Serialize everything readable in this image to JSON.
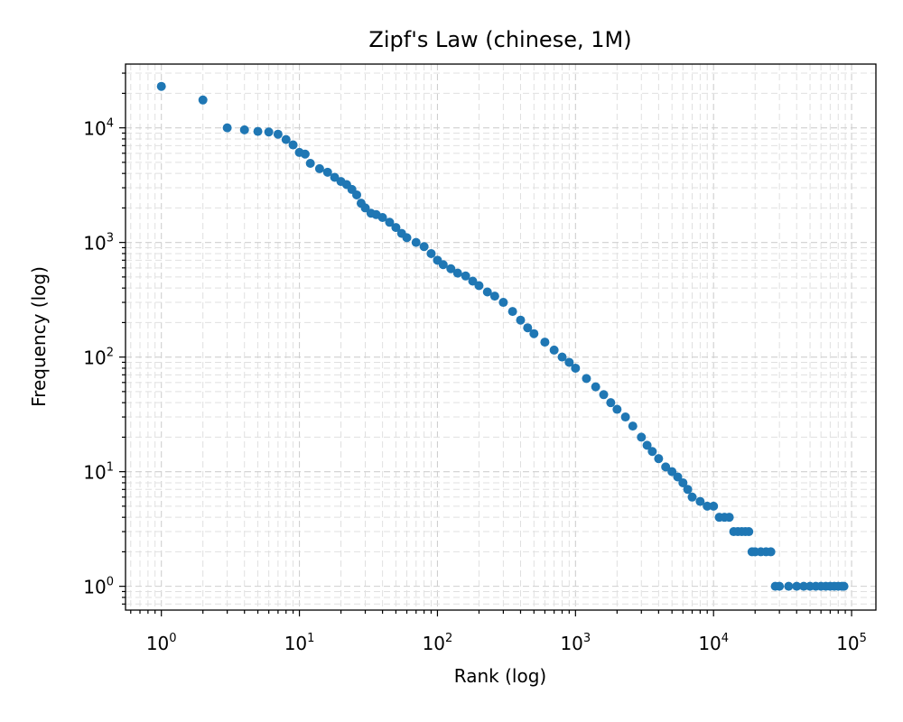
{
  "chart_data": {
    "type": "scatter",
    "title": "Zipf's Law (chinese, 1M)",
    "xlabel": "Rank (log)",
    "ylabel": "Frequency (log)",
    "xscale": "log",
    "yscale": "log",
    "xlim": [
      0.55,
      150000
    ],
    "ylim": [
      0.62,
      36000
    ],
    "xticks": [
      {
        "base": "10",
        "exp": "0",
        "value": 1
      },
      {
        "base": "10",
        "exp": "1",
        "value": 10
      },
      {
        "base": "10",
        "exp": "2",
        "value": 100
      },
      {
        "base": "10",
        "exp": "3",
        "value": 1000
      },
      {
        "base": "10",
        "exp": "4",
        "value": 10000
      },
      {
        "base": "10",
        "exp": "5",
        "value": 100000
      }
    ],
    "yticks": [
      {
        "base": "10",
        "exp": "0",
        "value": 1
      },
      {
        "base": "10",
        "exp": "1",
        "value": 10
      },
      {
        "base": "10",
        "exp": "2",
        "value": 100
      },
      {
        "base": "10",
        "exp": "3",
        "value": 1000
      },
      {
        "base": "10",
        "exp": "4",
        "value": 10000
      }
    ],
    "grid": true,
    "grid_style": "dashed, major and minor",
    "color": "#1f77b4",
    "series": [
      {
        "points": [
          [
            1,
            23000
          ],
          [
            2,
            17500
          ],
          [
            3,
            10000
          ],
          [
            4,
            9600
          ],
          [
            5,
            9300
          ],
          [
            6,
            9200
          ],
          [
            7,
            8800
          ],
          [
            8,
            7900
          ],
          [
            9,
            7100
          ],
          [
            10,
            6100
          ],
          [
            11,
            5900
          ],
          [
            12,
            4900
          ],
          [
            14,
            4400
          ],
          [
            16,
            4100
          ],
          [
            18,
            3700
          ],
          [
            20,
            3400
          ],
          [
            22,
            3200
          ],
          [
            24,
            2900
          ],
          [
            26,
            2600
          ],
          [
            28,
            2200
          ],
          [
            30,
            2000
          ],
          [
            33,
            1800
          ],
          [
            36,
            1750
          ],
          [
            40,
            1650
          ],
          [
            45,
            1500
          ],
          [
            50,
            1350
          ],
          [
            55,
            1200
          ],
          [
            60,
            1100
          ],
          [
            70,
            1000
          ],
          [
            80,
            920
          ],
          [
            90,
            800
          ],
          [
            100,
            700
          ],
          [
            110,
            640
          ],
          [
            125,
            590
          ],
          [
            140,
            540
          ],
          [
            160,
            510
          ],
          [
            180,
            460
          ],
          [
            200,
            420
          ],
          [
            230,
            370
          ],
          [
            260,
            340
          ],
          [
            300,
            300
          ],
          [
            350,
            250
          ],
          [
            400,
            210
          ],
          [
            450,
            180
          ],
          [
            500,
            160
          ],
          [
            600,
            135
          ],
          [
            700,
            115
          ],
          [
            800,
            100
          ],
          [
            900,
            90
          ],
          [
            1000,
            80
          ],
          [
            1200,
            65
          ],
          [
            1400,
            55
          ],
          [
            1600,
            47
          ],
          [
            1800,
            40
          ],
          [
            2000,
            35
          ],
          [
            2300,
            30
          ],
          [
            2600,
            25
          ],
          [
            3000,
            20
          ],
          [
            3300,
            17
          ],
          [
            3600,
            15
          ],
          [
            4000,
            13
          ],
          [
            4500,
            11
          ],
          [
            5000,
            10
          ],
          [
            5500,
            9
          ],
          [
            6000,
            8
          ],
          [
            6500,
            7
          ],
          [
            7000,
            6
          ],
          [
            8000,
            5.5
          ],
          [
            9000,
            5
          ],
          [
            10000,
            5
          ],
          [
            11000,
            4
          ],
          [
            12000,
            4
          ],
          [
            13000,
            4
          ],
          [
            14000,
            3
          ],
          [
            15000,
            3
          ],
          [
            16000,
            3
          ],
          [
            17000,
            3
          ],
          [
            18000,
            3
          ],
          [
            19000,
            2
          ],
          [
            20000,
            2
          ],
          [
            22000,
            2
          ],
          [
            24000,
            2
          ],
          [
            26000,
            2
          ],
          [
            28000,
            1
          ],
          [
            30000,
            1
          ],
          [
            35000,
            1
          ],
          [
            40000,
            1
          ],
          [
            45000,
            1
          ],
          [
            50000,
            1
          ],
          [
            55000,
            1
          ],
          [
            60000,
            1
          ],
          [
            65000,
            1
          ],
          [
            70000,
            1
          ],
          [
            75000,
            1
          ],
          [
            80000,
            1
          ],
          [
            85000,
            1
          ],
          [
            88000,
            1
          ]
        ]
      }
    ]
  }
}
